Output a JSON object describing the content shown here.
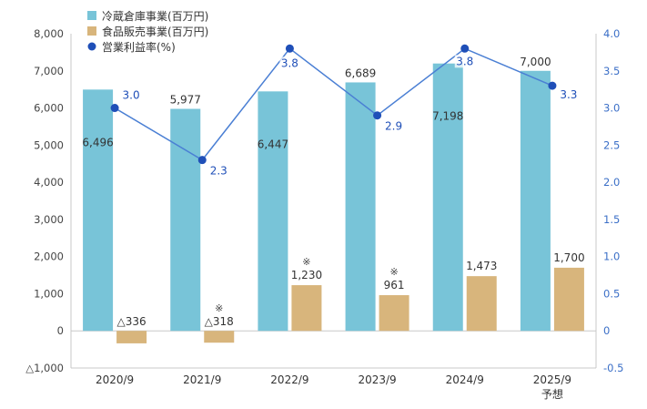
{
  "chart_data": {
    "type": "bar",
    "categories": [
      "2020/9",
      "2021/9",
      "2022/9",
      "2023/9",
      "2024/9",
      "2025/9"
    ],
    "category_sublabels": [
      "",
      "",
      "",
      "",
      "",
      "予想"
    ],
    "series": [
      {
        "name": "冷蔵倉庫事業(百万円)",
        "type": "bar",
        "axis": "left",
        "color": "#78c4d8",
        "values": [
          6496,
          5977,
          6447,
          6689,
          7198,
          7000
        ],
        "labels": [
          "6,496",
          "5,977",
          "6,447",
          "6,689",
          "7,198",
          "7,000"
        ],
        "notes": [
          "",
          "",
          "",
          "",
          "",
          ""
        ]
      },
      {
        "name": "食品販売事業(百万円)",
        "type": "bar",
        "axis": "left",
        "color": "#d8b57c",
        "values": [
          -336,
          -318,
          1230,
          961,
          1473,
          1700
        ],
        "labels": [
          "△336",
          "△318",
          "1,230",
          "961",
          "1,473",
          "1,700"
        ],
        "notes": [
          "",
          "※",
          "※",
          "※",
          "",
          ""
        ]
      },
      {
        "name": "営業利益率(%)",
        "type": "line",
        "axis": "right",
        "color": "#4a7fd4",
        "marker_color": "#1f4fb8",
        "values": [
          3.0,
          2.3,
          3.8,
          2.9,
          3.8,
          3.3
        ],
        "labels": [
          "3.0",
          "2.3",
          "3.8",
          "2.9",
          "3.8",
          "3.3"
        ]
      }
    ],
    "y_left": {
      "min": -1000,
      "max": 8000,
      "ticks": [
        -1000,
        0,
        1000,
        2000,
        3000,
        4000,
        5000,
        6000,
        7000,
        8000
      ],
      "tick_labels": [
        "△1,000",
        "0",
        "1,000",
        "2,000",
        "3,000",
        "4,000",
        "5,000",
        "6,000",
        "7,000",
        "8,000"
      ]
    },
    "y_right": {
      "min": -0.5,
      "max": 4.0,
      "ticks": [
        -0.5,
        0,
        0.5,
        1.0,
        1.5,
        2.0,
        2.5,
        3.0,
        3.5,
        4.0
      ],
      "tick_labels": [
        "-0.5",
        "0",
        "0.5",
        "1.0",
        "1.5",
        "2.0",
        "2.5",
        "3.0",
        "3.5",
        "4.0"
      ],
      "color": "#3b6fc7"
    },
    "grid": false,
    "legend_position": "top-left"
  }
}
